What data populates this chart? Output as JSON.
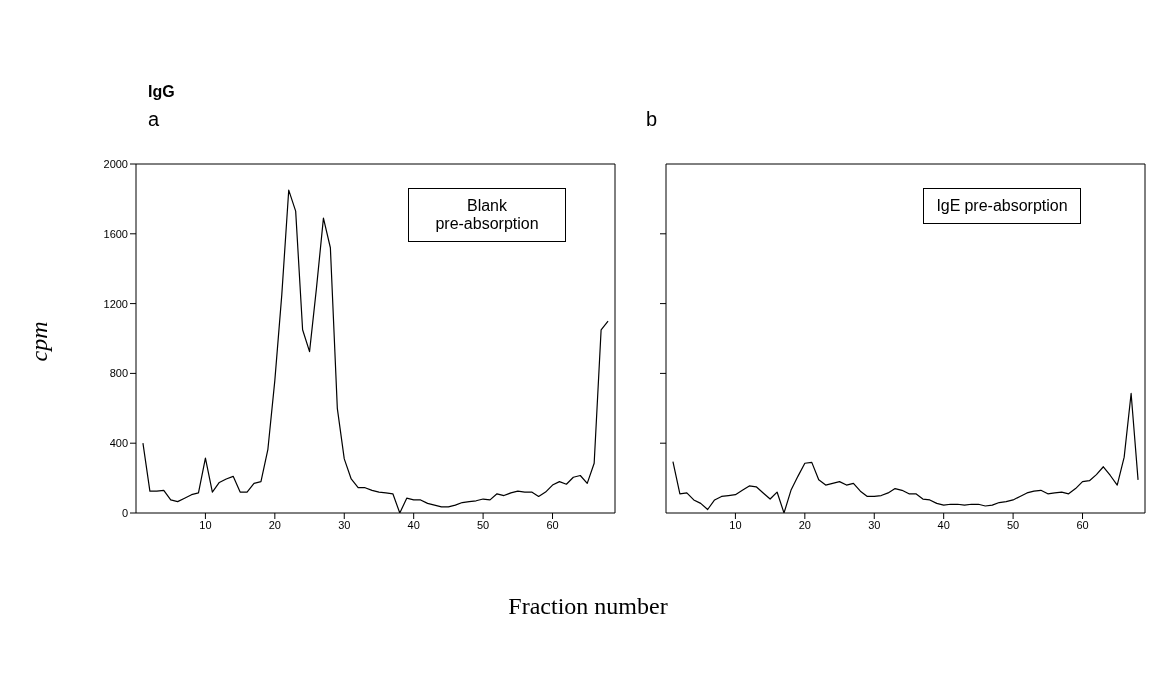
{
  "chart_data": [
    {
      "type": "line",
      "title": "IgG",
      "subtitle": "a",
      "xlabel": "Fraction number",
      "ylabel": "cpm",
      "annotations": [
        "Blank pre-absorption"
      ],
      "xlim": [
        0,
        69
      ],
      "xticks": [
        10,
        20,
        30,
        40,
        50,
        60
      ],
      "ylim": [
        0,
        2000
      ],
      "yticks": [
        0,
        400,
        800,
        1200,
        1600,
        2000
      ],
      "x": [
        1,
        2,
        3,
        4,
        5,
        6,
        7,
        8,
        9,
        10,
        11,
        12,
        13,
        14,
        15,
        16,
        17,
        18,
        19,
        20,
        21,
        22,
        23,
        24,
        25,
        26,
        27,
        28,
        29,
        30,
        31,
        32,
        33,
        34,
        35,
        36,
        37,
        38,
        39,
        40,
        41,
        42,
        43,
        44,
        45,
        46,
        47,
        48,
        49,
        50,
        51,
        52,
        53,
        54,
        55,
        56,
        57,
        58,
        59,
        60,
        61,
        62,
        63,
        64,
        65,
        66,
        67,
        68
      ],
      "series": [
        {
          "color": "#000000",
          "values": [
            400,
            125,
            125,
            130,
            75,
            65,
            85,
            105,
            115,
            315,
            120,
            175,
            195,
            210,
            120,
            120,
            170,
            180,
            365,
            760,
            1250,
            1850,
            1730,
            1050,
            925,
            1290,
            1690,
            1520,
            600,
            310,
            195,
            145,
            145,
            130,
            120,
            115,
            110,
            0,
            85,
            75,
            75,
            55,
            45,
            35,
            35,
            45,
            60,
            65,
            70,
            80,
            75,
            110,
            100,
            115,
            125,
            120,
            120,
            95,
            120,
            160,
            180,
            165,
            205,
            215,
            170,
            285,
            1050,
            1100
          ]
        }
      ]
    },
    {
      "type": "line",
      "subtitle": "b",
      "annotations": [
        "IgE pre-absorption"
      ],
      "xlim": [
        0,
        69
      ],
      "xticks": [
        10,
        20,
        30,
        40,
        50,
        60
      ],
      "ylim": [
        0,
        2000
      ],
      "yticks": [
        {
          "value": 400,
          "label": null
        },
        {
          "value": 800,
          "label": null
        },
        {
          "value": 1200,
          "label": null
        },
        {
          "value": 1600,
          "label": null
        }
      ],
      "tick_labels": "x",
      "x": [
        1,
        2,
        3,
        4,
        5,
        6,
        7,
        8,
        9,
        10,
        11,
        12,
        13,
        14,
        15,
        16,
        17,
        18,
        19,
        20,
        21,
        22,
        23,
        24,
        25,
        26,
        27,
        28,
        29,
        30,
        31,
        32,
        33,
        34,
        35,
        36,
        37,
        38,
        39,
        40,
        41,
        42,
        43,
        44,
        45,
        46,
        47,
        48,
        49,
        50,
        51,
        52,
        53,
        54,
        55,
        56,
        57,
        58,
        59,
        60,
        61,
        62,
        63,
        64,
        65,
        66,
        67,
        68
      ],
      "series": [
        {
          "color": "#000000",
          "values": [
            295,
            110,
            115,
            75,
            55,
            20,
            75,
            95,
            100,
            105,
            130,
            155,
            150,
            115,
            80,
            120,
            0,
            130,
            210,
            285,
            290,
            190,
            160,
            170,
            180,
            160,
            170,
            125,
            95,
            95,
            100,
            115,
            140,
            130,
            110,
            110,
            80,
            75,
            55,
            45,
            50,
            50,
            45,
            50,
            50,
            40,
            45,
            60,
            65,
            75,
            95,
            115,
            125,
            130,
            110,
            115,
            120,
            110,
            140,
            180,
            185,
            220,
            265,
            215,
            160,
            320,
            685,
            190
          ]
        }
      ]
    }
  ]
}
